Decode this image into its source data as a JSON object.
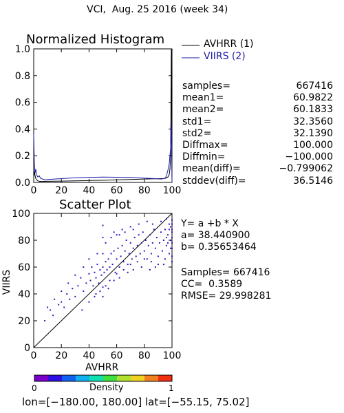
{
  "header": {
    "title": "VCI,  Aug. 25 2016 (week 34)"
  },
  "legend": {
    "items": [
      {
        "label": "AVHRR (1)",
        "color": "#000000"
      },
      {
        "label": "VIIRS (2)",
        "color": "#1a1aa6"
      }
    ]
  },
  "stats": [
    {
      "label": "samples=",
      "value": "667416"
    },
    {
      "label": "mean1=",
      "value": "60.9822"
    },
    {
      "label": "mean2=",
      "value": "60.1833"
    },
    {
      "label": "std1=",
      "value": "32.3560"
    },
    {
      "label": "std2=",
      "value": "32.1390"
    },
    {
      "label": "Diffmax=",
      "value": "100.000"
    },
    {
      "label": "Diffmin=",
      "value": "−100.000"
    },
    {
      "label": "mean(diff)=",
      "value": "−0.799062"
    },
    {
      "label": "stddev(diff)=",
      "value": "36.5146"
    }
  ],
  "regression": {
    "equation": "Y= a +b * X",
    "a_line": "a= 38.440900",
    "b_line": "b= 0.35653464",
    "samples_line": "Samples= 667416",
    "cc_line": "CC=  0.3589",
    "rmse_line": "RMSE= 29.998281"
  },
  "colorbar": {
    "label": "Density",
    "min_label": "0",
    "max_label": "1",
    "colors": [
      "#7a00c8",
      "#3010e0",
      "#1060f0",
      "#10b0f0",
      "#10e0b0",
      "#40e040",
      "#b0e030",
      "#f0d020",
      "#f08020",
      "#f03010"
    ]
  },
  "footer": {
    "text": "lon=[−180.00, 180.00] lat=[−55.15, 75.02]"
  },
  "chart_data": [
    {
      "type": "line",
      "title": "Normalized Histogram",
      "xlabel": "",
      "ylabel": "",
      "xlim": [
        0,
        100
      ],
      "ylim": [
        0,
        1
      ],
      "xticks": [
        "0",
        "20",
        "40",
        "60",
        "80",
        "100"
      ],
      "yticks": [
        "0.0",
        "0.2",
        "0.4",
        "0.6",
        "0.8",
        "1.0"
      ],
      "series": [
        {
          "name": "AVHRR (1)",
          "color": "#000000",
          "x": [
            0,
            0.5,
            1,
            1.5,
            2,
            3,
            4,
            6,
            10,
            20,
            30,
            40,
            50,
            60,
            70,
            80,
            90,
            95,
            97,
            98,
            98.5,
            99,
            99.5,
            100
          ],
          "y": [
            0.04,
            0.08,
            0.05,
            0.03,
            0.02,
            0.012,
            0.008,
            0.007,
            0.008,
            0.01,
            0.012,
            0.014,
            0.016,
            0.019,
            0.022,
            0.025,
            0.028,
            0.03,
            0.04,
            0.06,
            0.1,
            0.2,
            1.0,
            0.0
          ]
        },
        {
          "name": "VIIRS (2)",
          "color": "#1a1aa6",
          "x": [
            0,
            0.5,
            1,
            1.5,
            2,
            3,
            4,
            5,
            8,
            15,
            30,
            50,
            70,
            85,
            92,
            95,
            96,
            97,
            98,
            98.5,
            99,
            99.5,
            100
          ],
          "y": [
            0.36,
            0.12,
            0.07,
            0.1,
            0.06,
            0.04,
            0.05,
            0.03,
            0.02,
            0.025,
            0.035,
            0.04,
            0.037,
            0.03,
            0.025,
            0.03,
            0.05,
            0.09,
            0.14,
            0.2,
            0.26,
            0.45,
            0.0
          ]
        }
      ]
    },
    {
      "type": "scatter",
      "title": "Scatter Plot",
      "xlabel": "AVHRR",
      "ylabel": "VIIRS",
      "xlim": [
        0,
        100
      ],
      "ylim": [
        0,
        100
      ],
      "xticks": [
        "0",
        "20",
        "40",
        "60",
        "80",
        "100"
      ],
      "yticks": [
        "0",
        "20",
        "40",
        "60",
        "80",
        "100"
      ],
      "point_color": "#3a10c0",
      "regression": {
        "a": 38.4409,
        "b": 0.35653464
      },
      "points": [
        [
          12,
          28
        ],
        [
          14,
          24
        ],
        [
          18,
          32
        ],
        [
          20,
          34
        ],
        [
          22,
          30
        ],
        [
          24,
          40
        ],
        [
          26,
          36
        ],
        [
          28,
          44
        ],
        [
          30,
          38
        ],
        [
          32,
          46
        ],
        [
          34,
          52
        ],
        [
          36,
          42
        ],
        [
          38,
          48
        ],
        [
          40,
          55
        ],
        [
          41,
          50
        ],
        [
          42,
          60
        ],
        [
          43,
          46
        ],
        [
          44,
          56
        ],
        [
          45,
          52
        ],
        [
          46,
          62
        ],
        [
          47,
          48
        ],
        [
          48,
          58
        ],
        [
          49,
          54
        ],
        [
          50,
          60
        ],
        [
          50,
          70
        ],
        [
          50,
          45
        ],
        [
          50,
          82
        ],
        [
          50,
          38
        ],
        [
          50,
          91
        ],
        [
          51,
          56
        ],
        [
          52,
          64
        ],
        [
          53,
          58
        ],
        [
          54,
          66
        ],
        [
          55,
          60
        ],
        [
          56,
          70
        ],
        [
          57,
          62
        ],
        [
          58,
          72
        ],
        [
          59,
          56
        ],
        [
          60,
          66
        ],
        [
          61,
          74
        ],
        [
          62,
          60
        ],
        [
          63,
          68
        ],
        [
          64,
          76
        ],
        [
          65,
          64
        ],
        [
          66,
          72
        ],
        [
          67,
          80
        ],
        [
          68,
          62
        ],
        [
          69,
          70
        ],
        [
          70,
          78
        ],
        [
          71,
          66
        ],
        [
          72,
          74
        ],
        [
          73,
          82
        ],
        [
          74,
          68
        ],
        [
          75,
          76
        ],
        [
          76,
          84
        ],
        [
          77,
          70
        ],
        [
          78,
          78
        ],
        [
          79,
          86
        ],
        [
          80,
          72
        ],
        [
          81,
          80
        ],
        [
          82,
          66
        ],
        [
          83,
          76
        ],
        [
          84,
          84
        ],
        [
          85,
          70
        ],
        [
          86,
          78
        ],
        [
          87,
          88
        ],
        [
          88,
          74
        ],
        [
          89,
          82
        ],
        [
          90,
          68
        ],
        [
          91,
          78
        ],
        [
          92,
          86
        ],
        [
          93,
          72
        ],
        [
          94,
          80
        ],
        [
          95,
          88
        ],
        [
          96,
          76
        ],
        [
          97,
          84
        ],
        [
          98,
          70
        ],
        [
          99,
          80
        ],
        [
          100,
          86
        ],
        [
          100,
          74
        ],
        [
          55,
          50
        ],
        [
          60,
          55
        ],
        [
          65,
          58
        ],
        [
          70,
          62
        ],
        [
          75,
          64
        ],
        [
          80,
          66
        ],
        [
          85,
          64
        ],
        [
          90,
          62
        ],
        [
          95,
          66
        ],
        [
          100,
          68
        ],
        [
          45,
          40
        ],
        [
          52,
          46
        ],
        [
          58,
          50
        ],
        [
          62,
          52
        ],
        [
          68,
          56
        ],
        [
          72,
          58
        ],
        [
          78,
          60
        ],
        [
          84,
          58
        ],
        [
          88,
          60
        ],
        [
          94,
          62
        ],
        [
          60,
          84
        ],
        [
          64,
          88
        ],
        [
          70,
          90
        ],
        [
          76,
          92
        ],
        [
          82,
          94
        ],
        [
          86,
          92
        ],
        [
          92,
          94
        ],
        [
          96,
          96
        ],
        [
          98,
          92
        ],
        [
          100,
          95
        ],
        [
          46,
          70
        ],
        [
          52,
          78
        ],
        [
          56,
          82
        ],
        [
          58,
          86
        ],
        [
          62,
          84
        ],
        [
          66,
          86
        ],
        [
          72,
          88
        ],
        [
          40,
          66
        ],
        [
          36,
          60
        ],
        [
          30,
          54
        ],
        [
          25,
          48
        ],
        [
          20,
          42
        ],
        [
          15,
          36
        ],
        [
          10,
          30
        ],
        [
          8,
          20
        ],
        [
          35,
          28
        ],
        [
          40,
          34
        ],
        [
          44,
          38
        ],
        [
          48,
          42
        ],
        [
          54,
          44
        ],
        [
          100,
          92
        ],
        [
          100,
          88
        ],
        [
          100,
          82
        ],
        [
          100,
          78
        ],
        [
          100,
          64
        ],
        [
          99,
          90
        ],
        [
          99,
          74
        ],
        [
          98,
          88
        ],
        [
          97,
          78
        ],
        [
          96,
          82
        ]
      ]
    }
  ]
}
